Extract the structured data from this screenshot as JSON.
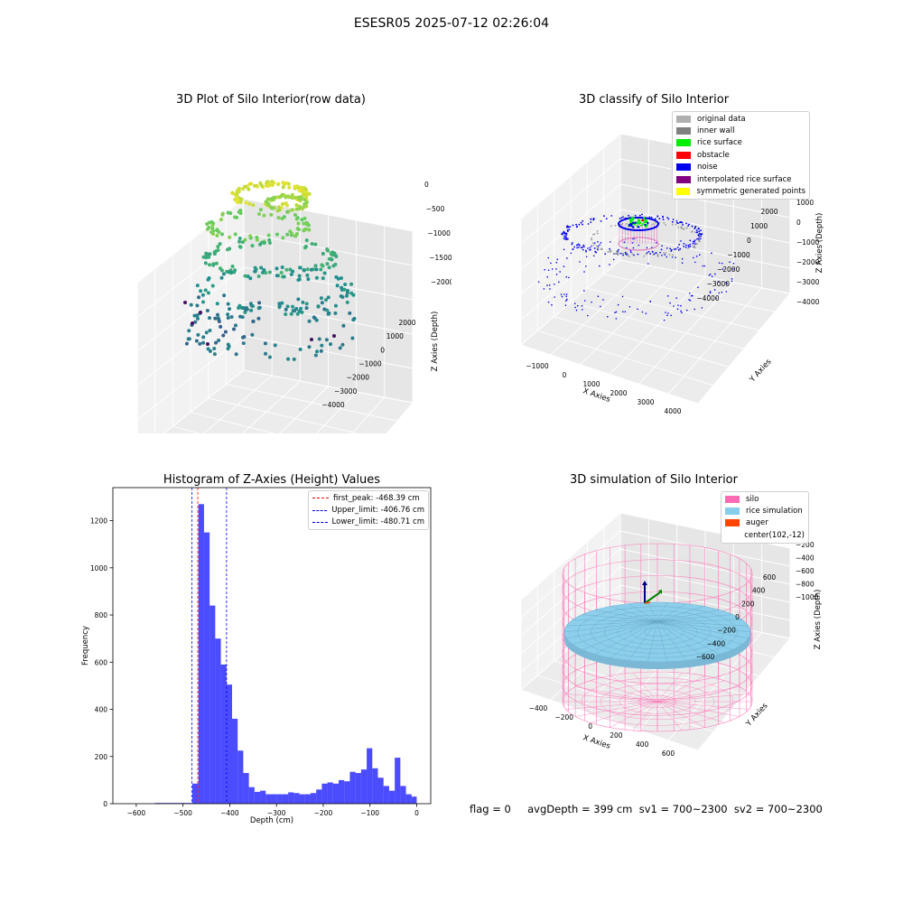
{
  "suptitle": "ESESR05 2025-07-12 02:26:04",
  "bottom_info": "flag = 0     avgDepth = 399 cm  sv1 = 700~2300  sv2 = 700~2300",
  "panels": {
    "raw": {
      "title": "3D Plot of Silo Interior(row data)",
      "xlabel": "X Axies",
      "ylabel": "Y Axies",
      "zlabel": "Z Axies (Depth)",
      "xticks": [
        "−1000",
        "0",
        "1000",
        "2000",
        "3000",
        "4000"
      ],
      "yticks": [
        "2000",
        "1000",
        "0",
        "−1000",
        "−2000",
        "−3000",
        "−4000"
      ],
      "zticks": [
        "0",
        "−500",
        "−1000",
        "−1500",
        "−2000"
      ]
    },
    "classify": {
      "title": "3D classify of Silo Interior",
      "xlabel": "X Axies",
      "ylabel": "Y Axies",
      "zlabel": "Z Axies (Depth)",
      "xticks": [
        "−1000",
        "0",
        "1000",
        "2000",
        "3000",
        "4000"
      ],
      "yticks": [
        "2000",
        "1000",
        "0",
        "−1000",
        "−2000",
        "−3000",
        "−4000"
      ],
      "zticks": [
        "1000",
        "0",
        "−1000",
        "−2000",
        "−3000",
        "−4000"
      ],
      "legend": [
        {
          "label": "original data",
          "color": "#b0b0b0"
        },
        {
          "label": "inner wall",
          "color": "#808080"
        },
        {
          "label": "rice surface",
          "color": "#00ee00"
        },
        {
          "label": "obstacle",
          "color": "#ff0000"
        },
        {
          "label": "noise",
          "color": "#0000ee"
        },
        {
          "label": "interpolated rice surface",
          "color": "#800080"
        },
        {
          "label": "symmetric generated points",
          "color": "#ffff00"
        }
      ]
    },
    "sim": {
      "title": "3D simulation of Silo Interior",
      "xlabel": "X Axies",
      "ylabel": "Y Axies",
      "zlabel": "Z Axies (Depth)",
      "xticks": [
        "−400",
        "−200",
        "0",
        "200",
        "400",
        "600"
      ],
      "yticks": [
        "600",
        "400",
        "200",
        "0",
        "−200",
        "−400",
        "−600"
      ],
      "zticks": [
        "200",
        "0",
        "−200",
        "−400",
        "−600",
        "−800",
        "−1000"
      ],
      "legend": [
        {
          "label": "silo",
          "color": "#ff69b4"
        },
        {
          "label": "rice simulation",
          "color": "#87ceeb"
        },
        {
          "label": "auger",
          "color": "#ff4500"
        },
        {
          "label": "center(102,-12)",
          "color": ""
        }
      ]
    }
  },
  "chart_data": {
    "type": "bar",
    "title": "Histogram of Z-Axies (Height) Values",
    "xlabel": "Depth (cm)",
    "ylabel": "Frequency",
    "xlim": [
      -650,
      30
    ],
    "ylim": [
      0,
      1340
    ],
    "xticks": [
      -600,
      -500,
      -400,
      -300,
      -200,
      -100,
      0
    ],
    "yticks": [
      0,
      200,
      400,
      600,
      800,
      1000,
      1200
    ],
    "bar_color": "#0000ff",
    "bins": [
      {
        "x0": -560,
        "x1": -480,
        "count": 3
      },
      {
        "x0": -480,
        "x1": -467,
        "count": 85
      },
      {
        "x0": -467,
        "x1": -455,
        "count": 1270
      },
      {
        "x0": -455,
        "x1": -443,
        "count": 1150
      },
      {
        "x0": -443,
        "x1": -431,
        "count": 840
      },
      {
        "x0": -431,
        "x1": -419,
        "count": 700
      },
      {
        "x0": -419,
        "x1": -407,
        "count": 590
      },
      {
        "x0": -407,
        "x1": -395,
        "count": 505
      },
      {
        "x0": -395,
        "x1": -383,
        "count": 360
      },
      {
        "x0": -383,
        "x1": -371,
        "count": 225
      },
      {
        "x0": -371,
        "x1": -359,
        "count": 130
      },
      {
        "x0": -359,
        "x1": -347,
        "count": 70
      },
      {
        "x0": -347,
        "x1": -335,
        "count": 50
      },
      {
        "x0": -335,
        "x1": -323,
        "count": 55
      },
      {
        "x0": -323,
        "x1": -311,
        "count": 40
      },
      {
        "x0": -311,
        "x1": -299,
        "count": 40
      },
      {
        "x0": -299,
        "x1": -287,
        "count": 40
      },
      {
        "x0": -287,
        "x1": -275,
        "count": 40
      },
      {
        "x0": -275,
        "x1": -263,
        "count": 48
      },
      {
        "x0": -263,
        "x1": -251,
        "count": 45
      },
      {
        "x0": -251,
        "x1": -239,
        "count": 40
      },
      {
        "x0": -239,
        "x1": -227,
        "count": 40
      },
      {
        "x0": -227,
        "x1": -215,
        "count": 45
      },
      {
        "x0": -215,
        "x1": -203,
        "count": 60
      },
      {
        "x0": -203,
        "x1": -191,
        "count": 85
      },
      {
        "x0": -191,
        "x1": -179,
        "count": 90
      },
      {
        "x0": -179,
        "x1": -167,
        "count": 85
      },
      {
        "x0": -167,
        "x1": -155,
        "count": 100
      },
      {
        "x0": -155,
        "x1": -143,
        "count": 95
      },
      {
        "x0": -143,
        "x1": -131,
        "count": 135
      },
      {
        "x0": -131,
        "x1": -119,
        "count": 130
      },
      {
        "x0": -119,
        "x1": -107,
        "count": 145
      },
      {
        "x0": -107,
        "x1": -95,
        "count": 235
      },
      {
        "x0": -95,
        "x1": -83,
        "count": 150
      },
      {
        "x0": -83,
        "x1": -71,
        "count": 110
      },
      {
        "x0": -71,
        "x1": -59,
        "count": 75
      },
      {
        "x0": -59,
        "x1": -47,
        "count": 55
      },
      {
        "x0": -47,
        "x1": -35,
        "count": 195
      },
      {
        "x0": -35,
        "x1": -23,
        "count": 75
      },
      {
        "x0": -23,
        "x1": -11,
        "count": 40
      },
      {
        "x0": -11,
        "x1": 0,
        "count": 30
      }
    ],
    "vlines": [
      {
        "label": "first_peak: -468.39 cm",
        "x": -468.39,
        "color": "#ff0000"
      },
      {
        "label": "Upper_limit: -406.76 cm",
        "x": -406.76,
        "color": "#0000ff"
      },
      {
        "label": "Lower_limit: -480.71 cm",
        "x": -480.71,
        "color": "#0000ff"
      }
    ],
    "legend_position": "top-right"
  }
}
